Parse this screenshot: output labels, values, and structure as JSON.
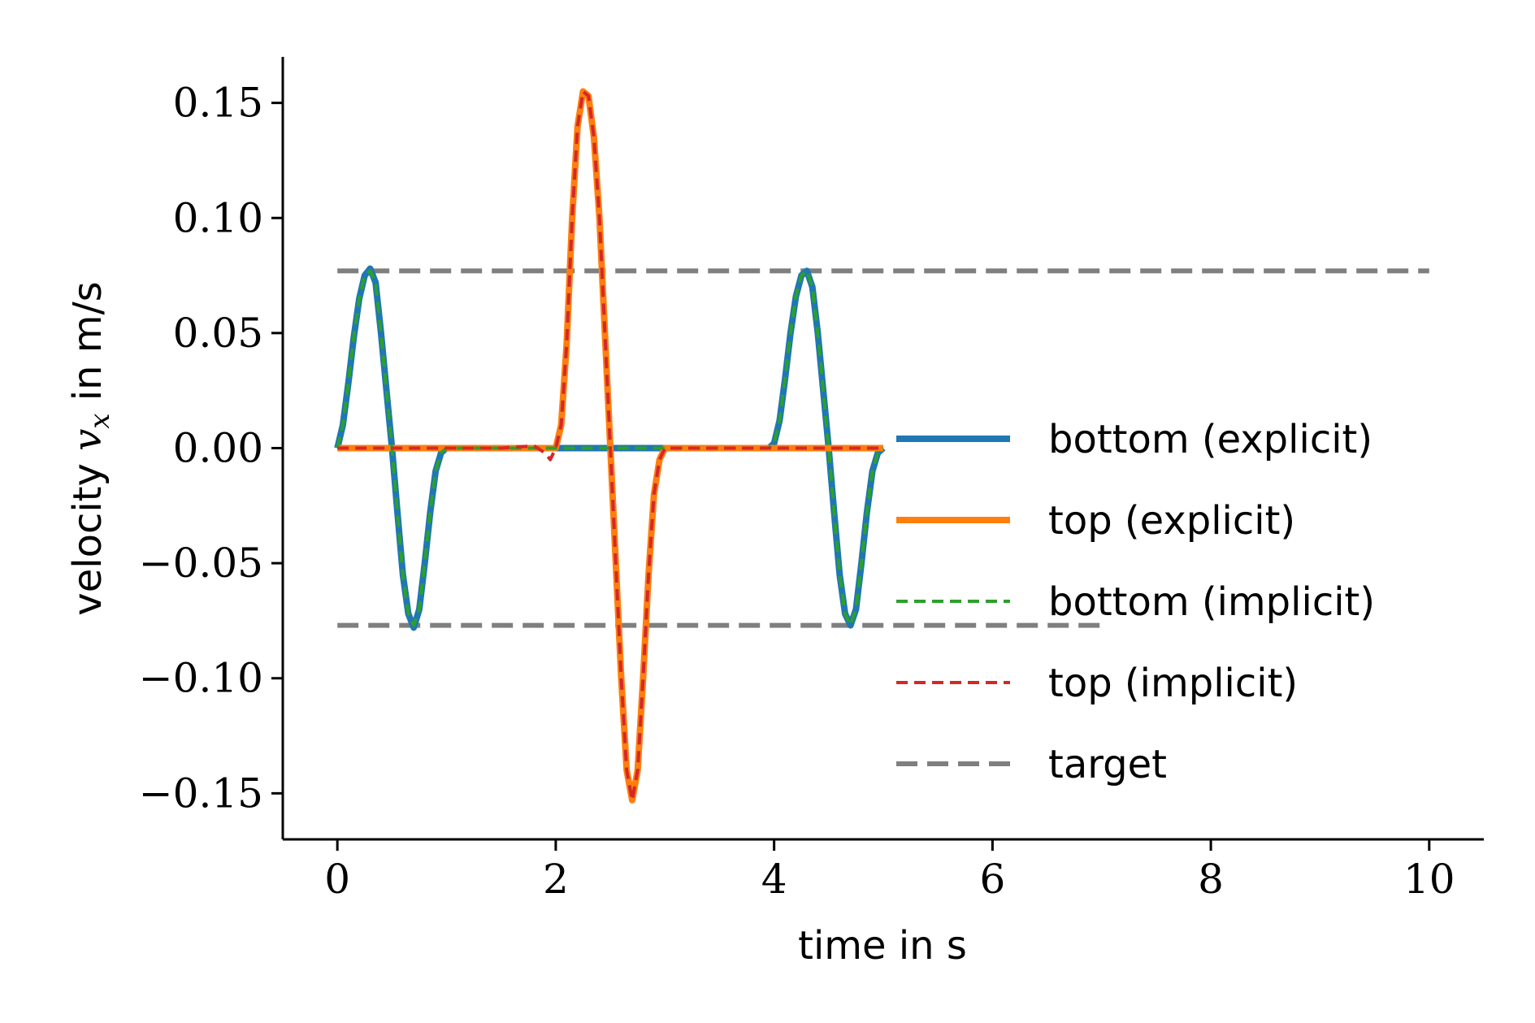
{
  "chart_data": {
    "type": "line",
    "xlabel": "time in s",
    "ylabel_prefix": "velocity ",
    "ylabel_var": "v",
    "ylabel_sub": "x",
    "ylabel_suffix": " in m/s",
    "xlim": [
      -0.5,
      10.5
    ],
    "ylim": [
      -0.17,
      0.17
    ],
    "xticks": [
      0,
      2,
      4,
      6,
      8,
      10
    ],
    "xtick_labels": [
      "0",
      "2",
      "4",
      "6",
      "8",
      "10"
    ],
    "yticks": [
      -0.15,
      -0.1,
      -0.05,
      0.0,
      0.05,
      0.1,
      0.15
    ],
    "ytick_labels": [
      "−0.15",
      "−0.10",
      "−0.05",
      "0.00",
      "0.05",
      "0.10",
      "0.15"
    ],
    "grid": false,
    "legend_position": "right",
    "series": [
      {
        "name": "bottom (explicit)",
        "color": "#1f77b4",
        "style": "solid",
        "x": [
          0,
          0.05,
          0.1,
          0.15,
          0.2,
          0.25,
          0.3,
          0.35,
          0.4,
          0.45,
          0.5,
          0.55,
          0.6,
          0.65,
          0.7,
          0.75,
          0.8,
          0.85,
          0.9,
          0.95,
          1.0,
          1.5,
          2.0,
          2.5,
          3.0,
          3.5,
          3.95,
          4.0,
          4.05,
          4.1,
          4.15,
          4.2,
          4.25,
          4.3,
          4.35,
          4.4,
          4.45,
          4.5,
          4.55,
          4.6,
          4.65,
          4.7,
          4.75,
          4.8,
          4.85,
          4.9,
          4.95,
          5.0
        ],
        "y": [
          0,
          0.01,
          0.028,
          0.048,
          0.065,
          0.075,
          0.078,
          0.072,
          0.05,
          0.025,
          0.0,
          -0.028,
          -0.055,
          -0.072,
          -0.078,
          -0.07,
          -0.05,
          -0.028,
          -0.01,
          -0.002,
          0,
          0,
          0,
          0,
          0,
          0,
          0,
          0.002,
          0.012,
          0.03,
          0.05,
          0.066,
          0.075,
          0.077,
          0.07,
          0.05,
          0.025,
          0.0,
          -0.028,
          -0.055,
          -0.072,
          -0.077,
          -0.07,
          -0.05,
          -0.028,
          -0.01,
          -0.002,
          0
        ]
      },
      {
        "name": "top (explicit)",
        "color": "#ff7f0e",
        "style": "solid",
        "x": [
          0,
          1.0,
          1.5,
          2.0,
          2.05,
          2.1,
          2.15,
          2.2,
          2.25,
          2.3,
          2.35,
          2.4,
          2.45,
          2.5,
          2.55,
          2.6,
          2.65,
          2.7,
          2.75,
          2.8,
          2.85,
          2.9,
          2.95,
          3.0,
          3.5,
          4.0,
          5.0
        ],
        "y": [
          0,
          0,
          0,
          0,
          0.01,
          0.045,
          0.1,
          0.14,
          0.155,
          0.153,
          0.135,
          0.1,
          0.05,
          0.0,
          -0.05,
          -0.1,
          -0.14,
          -0.153,
          -0.14,
          -0.1,
          -0.055,
          -0.02,
          -0.005,
          0,
          0,
          0,
          0
        ]
      },
      {
        "name": "bottom (implicit)",
        "color": "#2ca02c",
        "style": "dashed",
        "x": [
          0,
          0.05,
          0.1,
          0.15,
          0.2,
          0.25,
          0.3,
          0.35,
          0.4,
          0.45,
          0.5,
          0.55,
          0.6,
          0.65,
          0.7,
          0.75,
          0.8,
          0.85,
          0.9,
          0.95,
          1.0,
          1.5,
          2.0,
          2.5,
          3.0,
          3.5,
          3.95,
          4.0,
          4.05,
          4.1,
          4.15,
          4.2,
          4.25,
          4.3,
          4.35,
          4.4,
          4.45,
          4.5,
          4.55,
          4.6,
          4.65,
          4.7,
          4.75,
          4.8,
          4.85,
          4.9,
          4.95,
          5.0
        ],
        "y": [
          0,
          0.01,
          0.028,
          0.048,
          0.065,
          0.075,
          0.077,
          0.072,
          0.05,
          0.025,
          0.0,
          -0.028,
          -0.055,
          -0.072,
          -0.077,
          -0.07,
          -0.05,
          -0.028,
          -0.01,
          -0.002,
          0,
          0,
          0,
          0,
          0,
          0,
          0,
          0.002,
          0.012,
          0.03,
          0.05,
          0.066,
          0.075,
          0.077,
          0.07,
          0.05,
          0.025,
          0.0,
          -0.028,
          -0.055,
          -0.072,
          -0.077,
          -0.07,
          -0.05,
          -0.028,
          -0.01,
          -0.002,
          0
        ]
      },
      {
        "name": "top (implicit)",
        "color": "#d62728",
        "style": "dashed",
        "x": [
          0,
          1.0,
          1.5,
          1.8,
          1.9,
          1.95,
          2.0,
          2.05,
          2.1,
          2.15,
          2.2,
          2.25,
          2.3,
          2.35,
          2.4,
          2.45,
          2.5,
          2.55,
          2.6,
          2.65,
          2.7,
          2.75,
          2.8,
          2.85,
          2.9,
          2.95,
          3.0,
          3.5,
          4.0,
          5.0
        ],
        "y": [
          0,
          0,
          0,
          0.001,
          -0.002,
          -0.005,
          0.0,
          0.01,
          0.045,
          0.1,
          0.14,
          0.155,
          0.153,
          0.135,
          0.1,
          0.05,
          0.0,
          -0.05,
          -0.1,
          -0.14,
          -0.153,
          -0.14,
          -0.1,
          -0.055,
          -0.02,
          -0.005,
          0,
          0,
          0,
          0
        ]
      },
      {
        "name": "target",
        "color": "#7f7f7f",
        "style": "dashed-long",
        "segments": [
          {
            "x": [
              0,
              10
            ],
            "y": [
              0.077,
              0.077
            ]
          },
          {
            "x": [
              0,
              7
            ],
            "y": [
              -0.077,
              -0.077
            ]
          }
        ]
      }
    ]
  }
}
